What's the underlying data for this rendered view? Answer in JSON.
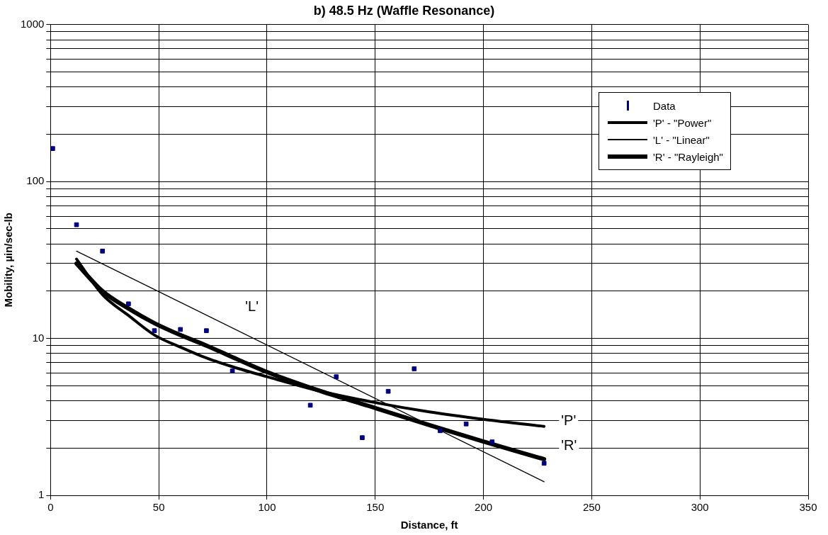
{
  "chart_data": {
    "type": "scatter",
    "title": "b) 48.5 Hz (Waffle Resonance)",
    "xlabel": "Distance, ft",
    "ylabel": "Mobility, µin/sec-lb",
    "series": [
      {
        "name": "Data",
        "type": "scatter",
        "color": "#000080",
        "values": [
          162,
          53,
          36,
          16.6,
          11.2,
          11.4,
          11.2,
          6.2,
          3.75,
          5.7,
          2.33,
          4.6,
          6.4,
          2.58,
          2.85,
          2.19,
          1.6
        ]
      },
      {
        "name": "'P' - \"Power\"",
        "type": "line",
        "color": "#000000",
        "x": [
          12,
          24,
          36,
          48,
          60,
          72,
          84,
          100,
          125,
          150,
          175,
          200,
          228
        ],
        "values": [
          32,
          19,
          14,
          10.5,
          8.8,
          7.5,
          6.6,
          5.7,
          4.6,
          3.9,
          3.4,
          3.05,
          2.75
        ]
      },
      {
        "name": "'L' - \"Linear\"",
        "type": "line",
        "color": "#000000",
        "x": [
          12,
          228
        ],
        "values": [
          36,
          1.22
        ]
      },
      {
        "name": "'R' - \"Rayleigh\"",
        "type": "line",
        "color": "#000000",
        "x": [
          12,
          24,
          36,
          48,
          60,
          72,
          84,
          100,
          125,
          150,
          175,
          200,
          228
        ],
        "values": [
          30,
          20,
          15.5,
          12.5,
          10.5,
          9,
          7.6,
          6.1,
          4.6,
          3.6,
          2.8,
          2.2,
          1.7
        ]
      }
    ],
    "x": [
      1,
      12,
      24,
      36,
      48,
      60,
      72,
      84,
      120,
      132,
      144,
      156,
      168,
      180,
      192,
      204,
      228
    ],
    "xlim": [
      0,
      350
    ],
    "xticks": [
      0,
      50,
      100,
      150,
      200,
      250,
      300,
      350
    ],
    "ylim": [
      1,
      1000
    ],
    "log": "y",
    "yticks": [
      1,
      {
        "value": 2,
        "label": null
      },
      {
        "value": 3,
        "label": null
      },
      {
        "value": 4,
        "label": null
      },
      {
        "value": 5,
        "label": null
      },
      {
        "value": 6,
        "label": null
      },
      {
        "value": 7,
        "label": null
      },
      {
        "value": 8,
        "label": null
      },
      {
        "value": 9,
        "label": null
      },
      10,
      {
        "value": 20,
        "label": null
      },
      {
        "value": 30,
        "label": null
      },
      {
        "value": 40,
        "label": null
      },
      {
        "value": 50,
        "label": null
      },
      {
        "value": 60,
        "label": null
      },
      {
        "value": 70,
        "label": null
      },
      {
        "value": 80,
        "label": null
      },
      {
        "value": 90,
        "label": null
      },
      100,
      {
        "value": 200,
        "label": null
      },
      {
        "value": 300,
        "label": null
      },
      {
        "value": 400,
        "label": null
      },
      {
        "value": 500,
        "label": null
      },
      {
        "value": 600,
        "label": null
      },
      {
        "value": 700,
        "label": null
      },
      {
        "value": 800,
        "label": null
      },
      {
        "value": 900,
        "label": null
      },
      1000
    ],
    "grid": true,
    "legend": "top right",
    "annotations": [
      "'L'",
      "'P'",
      "'R'"
    ]
  }
}
